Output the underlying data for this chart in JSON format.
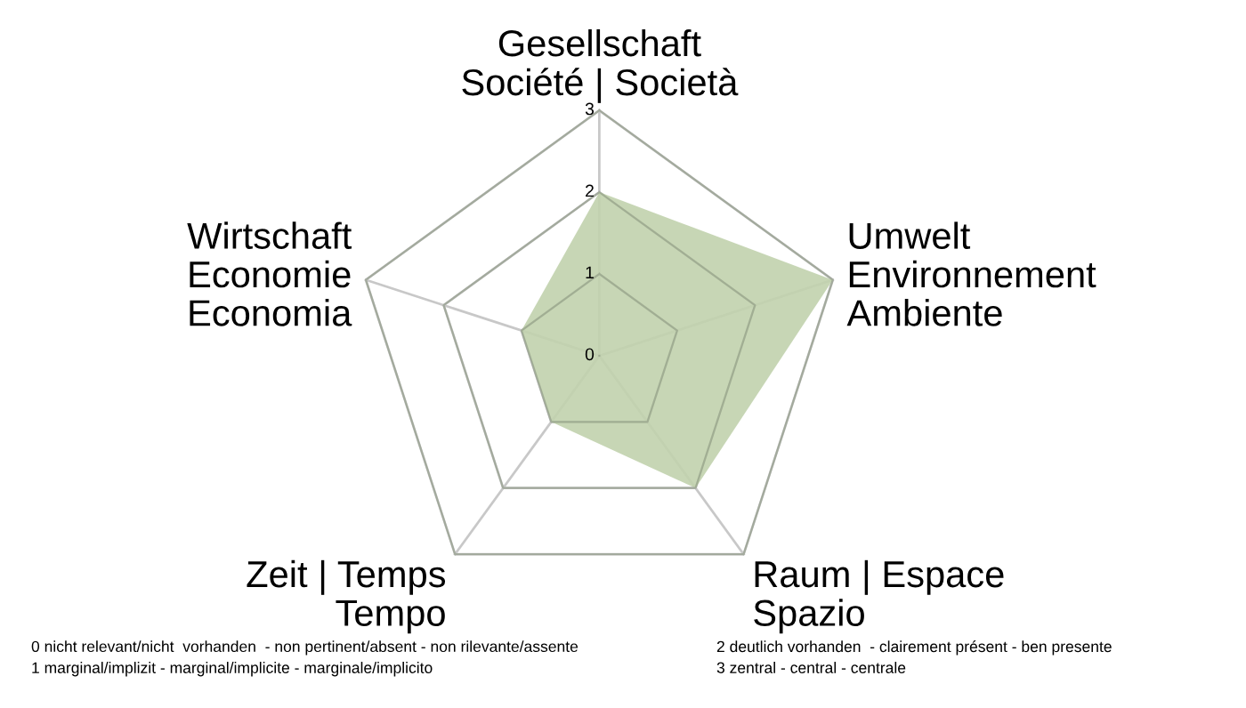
{
  "chart_data": {
    "type": "radar",
    "categories": [
      "Gesellschaft\nSociété | Società",
      "Umwelt\nEnvironnement\nAmbiente",
      "Raum | Espace\nSpazio",
      "Zeit | Temps\nTempo",
      "Wirtschaft\nEconomie\nEconomia"
    ],
    "series": [
      {
        "color": "#c1d1ad",
        "values": [
          2,
          3,
          2,
          1,
          1
        ]
      }
    ],
    "ylim": [
      0,
      3
    ],
    "yticks": [
      0,
      1,
      2,
      3
    ],
    "grid": true,
    "annotations": [
      "0 nicht relevant/nicht  vorhanden  - non pertinent/absent - non rilevante/assente",
      "1 marginal/implizit - marginal/implicite - marginale/implicito",
      "2 deutlich vorhanden  - clairement présent - ben presente",
      "3 zentral - central - centrale"
    ]
  }
}
